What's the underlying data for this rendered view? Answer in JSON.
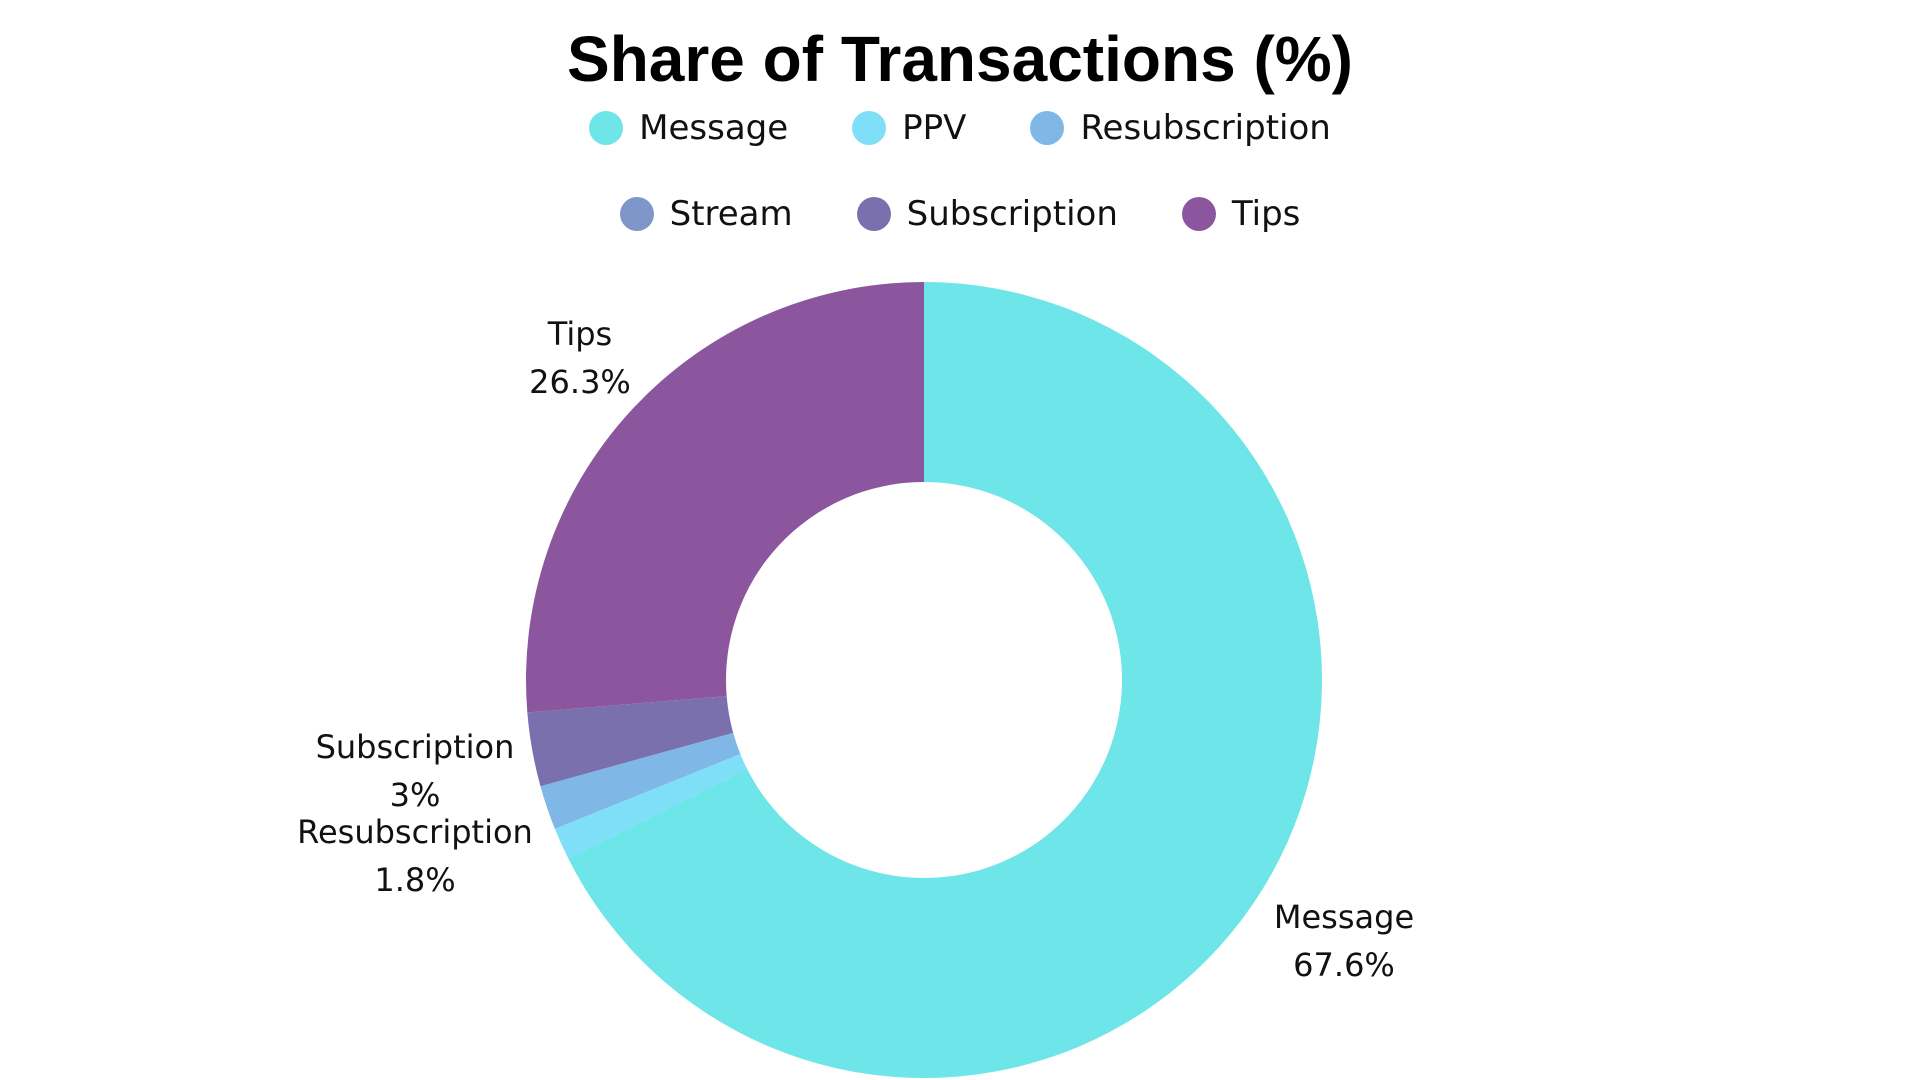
{
  "chart_data": {
    "type": "pie",
    "variant": "donut",
    "title": "Share of Transactions (%)",
    "legend_position": "top",
    "categories": [
      "Message",
      "PPV",
      "Resubscription",
      "Stream",
      "Subscription",
      "Tips"
    ],
    "values": [
      67.6,
      1.3,
      1.8,
      0,
      3,
      26.3
    ],
    "value_notes": {
      "PPV": "unlabeled thin slice; estimated from remainder",
      "Stream": "no visible slice; estimated ~0"
    },
    "colors": [
      "#6ee5e8",
      "#7fdff8",
      "#7fb8e6",
      "#7f97c8",
      "#7a70ad",
      "#8b569e"
    ],
    "data_labels": [
      {
        "name": "Message",
        "value": "67.6%"
      },
      {
        "name": "Tips",
        "value": "26.3%"
      },
      {
        "name": "Subscription",
        "value": "3%"
      },
      {
        "name": "Resubscription",
        "value": "1.8%"
      }
    ]
  },
  "legend": {
    "row1": [
      {
        "label": "Message",
        "color": "#6ee5e8"
      },
      {
        "label": "PPV",
        "color": "#7fdff8"
      },
      {
        "label": "Resubscription",
        "color": "#7fb8e6"
      }
    ],
    "row2": [
      {
        "label": "Stream",
        "color": "#7f97c8"
      },
      {
        "label": "Subscription",
        "color": "#7a70ad"
      },
      {
        "label": "Tips",
        "color": "#8b569e"
      }
    ]
  },
  "labels": {
    "tips_name": "Tips",
    "tips_value": "26.3%",
    "subscription_name": "Subscription",
    "subscription_value": "3%",
    "resubscription_name": "Resubscription",
    "resubscription_value": "1.8%",
    "message_name": "Message",
    "message_value": "67.6%"
  }
}
